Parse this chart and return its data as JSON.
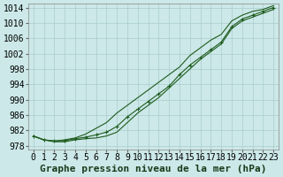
{
  "xlabel": "Graphe pression niveau de la mer (hPa)",
  "ylabel": "",
  "background_color": "#cce8e8",
  "grid_color": "#aacccc",
  "line_color": "#1e5c1e",
  "ylim": [
    977,
    1015
  ],
  "xlim": [
    -0.5,
    23.5
  ],
  "yticks": [
    978,
    982,
    986,
    990,
    994,
    998,
    1002,
    1006,
    1010,
    1014
  ],
  "xticks": [
    0,
    1,
    2,
    3,
    4,
    5,
    6,
    7,
    8,
    9,
    10,
    11,
    12,
    13,
    14,
    15,
    16,
    17,
    18,
    19,
    20,
    21,
    22,
    23
  ],
  "hours": [
    0,
    1,
    2,
    3,
    4,
    5,
    6,
    7,
    8,
    9,
    10,
    11,
    12,
    13,
    14,
    15,
    16,
    17,
    18,
    19,
    20,
    21,
    22,
    23
  ],
  "pressure_main": [
    980.5,
    979.5,
    979.2,
    979.3,
    979.8,
    980.2,
    980.8,
    981.5,
    983.0,
    985.5,
    987.5,
    989.5,
    991.5,
    993.5,
    996.5,
    999.0,
    1001.0,
    1003.0,
    1005.0,
    1009.0,
    1011.0,
    1012.0,
    1013.0,
    1014.0
  ],
  "pressure_upper": [
    980.5,
    979.5,
    979.2,
    979.5,
    980.0,
    981.0,
    982.5,
    984.0,
    986.5,
    988.5,
    990.5,
    992.5,
    994.5,
    996.5,
    998.5,
    1001.5,
    1003.5,
    1005.5,
    1007.0,
    1010.5,
    1012.0,
    1013.0,
    1013.5,
    1014.5
  ],
  "pressure_lower": [
    980.5,
    979.5,
    979.0,
    979.0,
    979.5,
    979.8,
    980.0,
    980.5,
    981.5,
    984.0,
    986.5,
    988.5,
    990.5,
    993.0,
    995.5,
    998.0,
    1000.5,
    1002.5,
    1004.5,
    1008.5,
    1010.5,
    1011.5,
    1012.5,
    1013.5
  ],
  "tick_fontsize": 7,
  "label_fontsize": 8
}
